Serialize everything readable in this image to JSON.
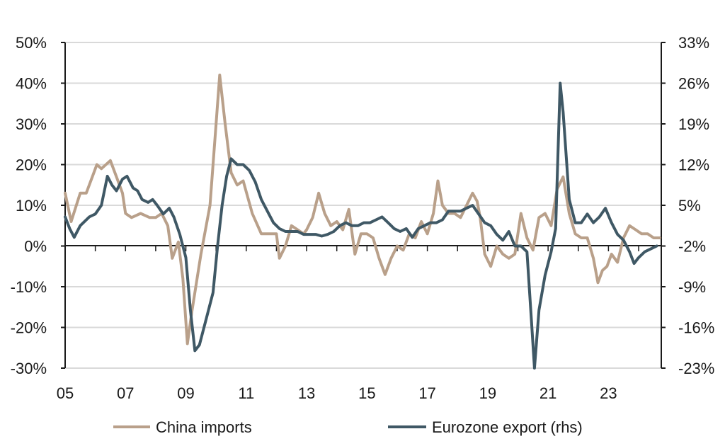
{
  "chart_data": {
    "type": "line",
    "title": "",
    "xlabel": "",
    "ylabel": "",
    "x_tick_labels": [
      "05",
      "07",
      "09",
      "11",
      "13",
      "15",
      "17",
      "19",
      "21",
      "23"
    ],
    "x_tick_years": [
      2005,
      2007,
      2009,
      2011,
      2013,
      2015,
      2017,
      2019,
      2021,
      2023
    ],
    "xlim": [
      2005,
      2024.75
    ],
    "ylim_left": [
      -30,
      50
    ],
    "ylim_right": [
      -23,
      33
    ],
    "y_ticks_left": [
      "50%",
      "40%",
      "30%",
      "20%",
      "10%",
      "0%",
      "-10%",
      "-20%",
      "-30%"
    ],
    "y_ticks_right": [
      "33%",
      "26%",
      "19%",
      "12%",
      "5%",
      "-2%",
      "-9%",
      "-16%",
      "-23%"
    ],
    "grid": "horizontal",
    "legend_position": "bottom",
    "series": [
      {
        "name": "China imports",
        "axis": "left",
        "color": "#b9a08a",
        "points": [
          [
            2005.0,
            13
          ],
          [
            2005.2,
            6
          ],
          [
            2005.5,
            13
          ],
          [
            2005.7,
            13
          ],
          [
            2005.9,
            17
          ],
          [
            2006.05,
            20
          ],
          [
            2006.2,
            19
          ],
          [
            2006.5,
            21
          ],
          [
            2006.7,
            17
          ],
          [
            2006.9,
            13
          ],
          [
            2007.0,
            8
          ],
          [
            2007.2,
            7
          ],
          [
            2007.5,
            8
          ],
          [
            2007.8,
            7
          ],
          [
            2008.0,
            7
          ],
          [
            2008.2,
            8
          ],
          [
            2008.4,
            5
          ],
          [
            2008.55,
            -3
          ],
          [
            2008.75,
            1
          ],
          [
            2008.9,
            -8
          ],
          [
            2009.05,
            -24
          ],
          [
            2009.2,
            -16
          ],
          [
            2009.5,
            -2
          ],
          [
            2009.8,
            10
          ],
          [
            2010.0,
            30
          ],
          [
            2010.12,
            42
          ],
          [
            2010.3,
            30
          ],
          [
            2010.5,
            18
          ],
          [
            2010.7,
            15
          ],
          [
            2010.9,
            16
          ],
          [
            2011.2,
            8
          ],
          [
            2011.5,
            3
          ],
          [
            2011.8,
            3
          ],
          [
            2012.0,
            3
          ],
          [
            2012.1,
            -3
          ],
          [
            2012.3,
            0
          ],
          [
            2012.5,
            5
          ],
          [
            2012.7,
            4
          ],
          [
            2012.9,
            3
          ],
          [
            2013.0,
            4
          ],
          [
            2013.2,
            7
          ],
          [
            2013.4,
            13
          ],
          [
            2013.6,
            8
          ],
          [
            2013.8,
            5
          ],
          [
            2014.0,
            6
          ],
          [
            2014.2,
            4
          ],
          [
            2014.4,
            9
          ],
          [
            2014.6,
            -2
          ],
          [
            2014.8,
            3
          ],
          [
            2015.0,
            3
          ],
          [
            2015.2,
            2
          ],
          [
            2015.4,
            -3
          ],
          [
            2015.6,
            -7
          ],
          [
            2015.8,
            -3
          ],
          [
            2016.0,
            0
          ],
          [
            2016.2,
            -1
          ],
          [
            2016.4,
            3
          ],
          [
            2016.6,
            2
          ],
          [
            2016.8,
            6
          ],
          [
            2017.0,
            3
          ],
          [
            2017.2,
            8
          ],
          [
            2017.35,
            16
          ],
          [
            2017.5,
            10
          ],
          [
            2017.7,
            8
          ],
          [
            2017.9,
            8
          ],
          [
            2018.1,
            7
          ],
          [
            2018.3,
            10
          ],
          [
            2018.5,
            13
          ],
          [
            2018.65,
            11
          ],
          [
            2018.75,
            7
          ],
          [
            2018.9,
            -2
          ],
          [
            2019.1,
            -5
          ],
          [
            2019.3,
            0
          ],
          [
            2019.5,
            -2
          ],
          [
            2019.7,
            -3
          ],
          [
            2019.9,
            -2
          ],
          [
            2020.1,
            8
          ],
          [
            2020.3,
            2
          ],
          [
            2020.5,
            -1
          ],
          [
            2020.7,
            7
          ],
          [
            2020.9,
            8
          ],
          [
            2021.1,
            5
          ],
          [
            2021.3,
            14
          ],
          [
            2021.5,
            17
          ],
          [
            2021.7,
            8
          ],
          [
            2021.9,
            3
          ],
          [
            2022.1,
            2
          ],
          [
            2022.3,
            2
          ],
          [
            2022.5,
            -3
          ],
          [
            2022.65,
            -9
          ],
          [
            2022.8,
            -6
          ],
          [
            2022.95,
            -5
          ],
          [
            2023.1,
            -2
          ],
          [
            2023.3,
            -4
          ],
          [
            2023.5,
            2
          ],
          [
            2023.7,
            5
          ],
          [
            2023.9,
            4
          ],
          [
            2024.1,
            3
          ],
          [
            2024.3,
            3
          ],
          [
            2024.5,
            2
          ],
          [
            2024.7,
            2
          ]
        ]
      },
      {
        "name": "Eurozone export (rhs)",
        "axis": "right",
        "color": "#3f5865",
        "points": [
          [
            2005.0,
            3
          ],
          [
            2005.15,
            1
          ],
          [
            2005.3,
            -0.5
          ],
          [
            2005.5,
            1.5
          ],
          [
            2005.8,
            3
          ],
          [
            2006.0,
            3.5
          ],
          [
            2006.2,
            5
          ],
          [
            2006.4,
            10
          ],
          [
            2006.55,
            8.5
          ],
          [
            2006.7,
            7.5
          ],
          [
            2006.9,
            9.5
          ],
          [
            2007.05,
            10
          ],
          [
            2007.25,
            8
          ],
          [
            2007.4,
            7.5
          ],
          [
            2007.55,
            6
          ],
          [
            2007.75,
            5.5
          ],
          [
            2007.9,
            6
          ],
          [
            2008.05,
            5
          ],
          [
            2008.25,
            3.5
          ],
          [
            2008.45,
            4.5
          ],
          [
            2008.6,
            3
          ],
          [
            2008.8,
            0
          ],
          [
            2009.0,
            -4
          ],
          [
            2009.15,
            -13
          ],
          [
            2009.3,
            -20
          ],
          [
            2009.45,
            -19
          ],
          [
            2009.7,
            -14
          ],
          [
            2009.9,
            -10
          ],
          [
            2010.05,
            -2
          ],
          [
            2010.2,
            5
          ],
          [
            2010.35,
            10
          ],
          [
            2010.5,
            13
          ],
          [
            2010.7,
            12
          ],
          [
            2010.9,
            12
          ],
          [
            2011.1,
            11
          ],
          [
            2011.3,
            9
          ],
          [
            2011.5,
            6
          ],
          [
            2011.7,
            4
          ],
          [
            2011.9,
            2
          ],
          [
            2012.1,
            1
          ],
          [
            2012.3,
            0.5
          ],
          [
            2012.5,
            0.5
          ],
          [
            2012.7,
            0.5
          ],
          [
            2012.9,
            0
          ],
          [
            2013.1,
            0
          ],
          [
            2013.3,
            0
          ],
          [
            2013.5,
            -0.3
          ],
          [
            2013.7,
            0
          ],
          [
            2013.9,
            0.5
          ],
          [
            2014.1,
            1.5
          ],
          [
            2014.3,
            2
          ],
          [
            2014.5,
            1.5
          ],
          [
            2014.7,
            1.5
          ],
          [
            2014.9,
            2
          ],
          [
            2015.1,
            2
          ],
          [
            2015.3,
            2.5
          ],
          [
            2015.5,
            3
          ],
          [
            2015.7,
            2
          ],
          [
            2015.9,
            1
          ],
          [
            2016.1,
            0.5
          ],
          [
            2016.3,
            1
          ],
          [
            2016.5,
            -0.5
          ],
          [
            2016.7,
            1
          ],
          [
            2016.9,
            1.5
          ],
          [
            2017.1,
            2
          ],
          [
            2017.3,
            2
          ],
          [
            2017.5,
            2.5
          ],
          [
            2017.7,
            4
          ],
          [
            2017.9,
            4
          ],
          [
            2018.1,
            4
          ],
          [
            2018.3,
            4.5
          ],
          [
            2018.5,
            5
          ],
          [
            2018.7,
            3.5
          ],
          [
            2018.9,
            2
          ],
          [
            2019.1,
            1.5
          ],
          [
            2019.3,
            0
          ],
          [
            2019.5,
            -1
          ],
          [
            2019.7,
            0.5
          ],
          [
            2019.9,
            -2
          ],
          [
            2020.1,
            -2
          ],
          [
            2020.3,
            -3
          ],
          [
            2020.45,
            -15
          ],
          [
            2020.55,
            -23
          ],
          [
            2020.7,
            -13
          ],
          [
            2020.9,
            -7
          ],
          [
            2021.1,
            -3
          ],
          [
            2021.25,
            1
          ],
          [
            2021.4,
            26
          ],
          [
            2021.5,
            21
          ],
          [
            2021.7,
            6
          ],
          [
            2021.9,
            2
          ],
          [
            2022.1,
            2
          ],
          [
            2022.3,
            3.5
          ],
          [
            2022.5,
            2
          ],
          [
            2022.7,
            3
          ],
          [
            2022.9,
            4.5
          ],
          [
            2023.1,
            2
          ],
          [
            2023.3,
            0
          ],
          [
            2023.5,
            -1
          ],
          [
            2023.7,
            -3
          ],
          [
            2023.85,
            -5
          ],
          [
            2024.0,
            -4
          ],
          [
            2024.2,
            -3
          ],
          [
            2024.4,
            -2.5
          ],
          [
            2024.6,
            -2
          ]
        ]
      }
    ]
  }
}
